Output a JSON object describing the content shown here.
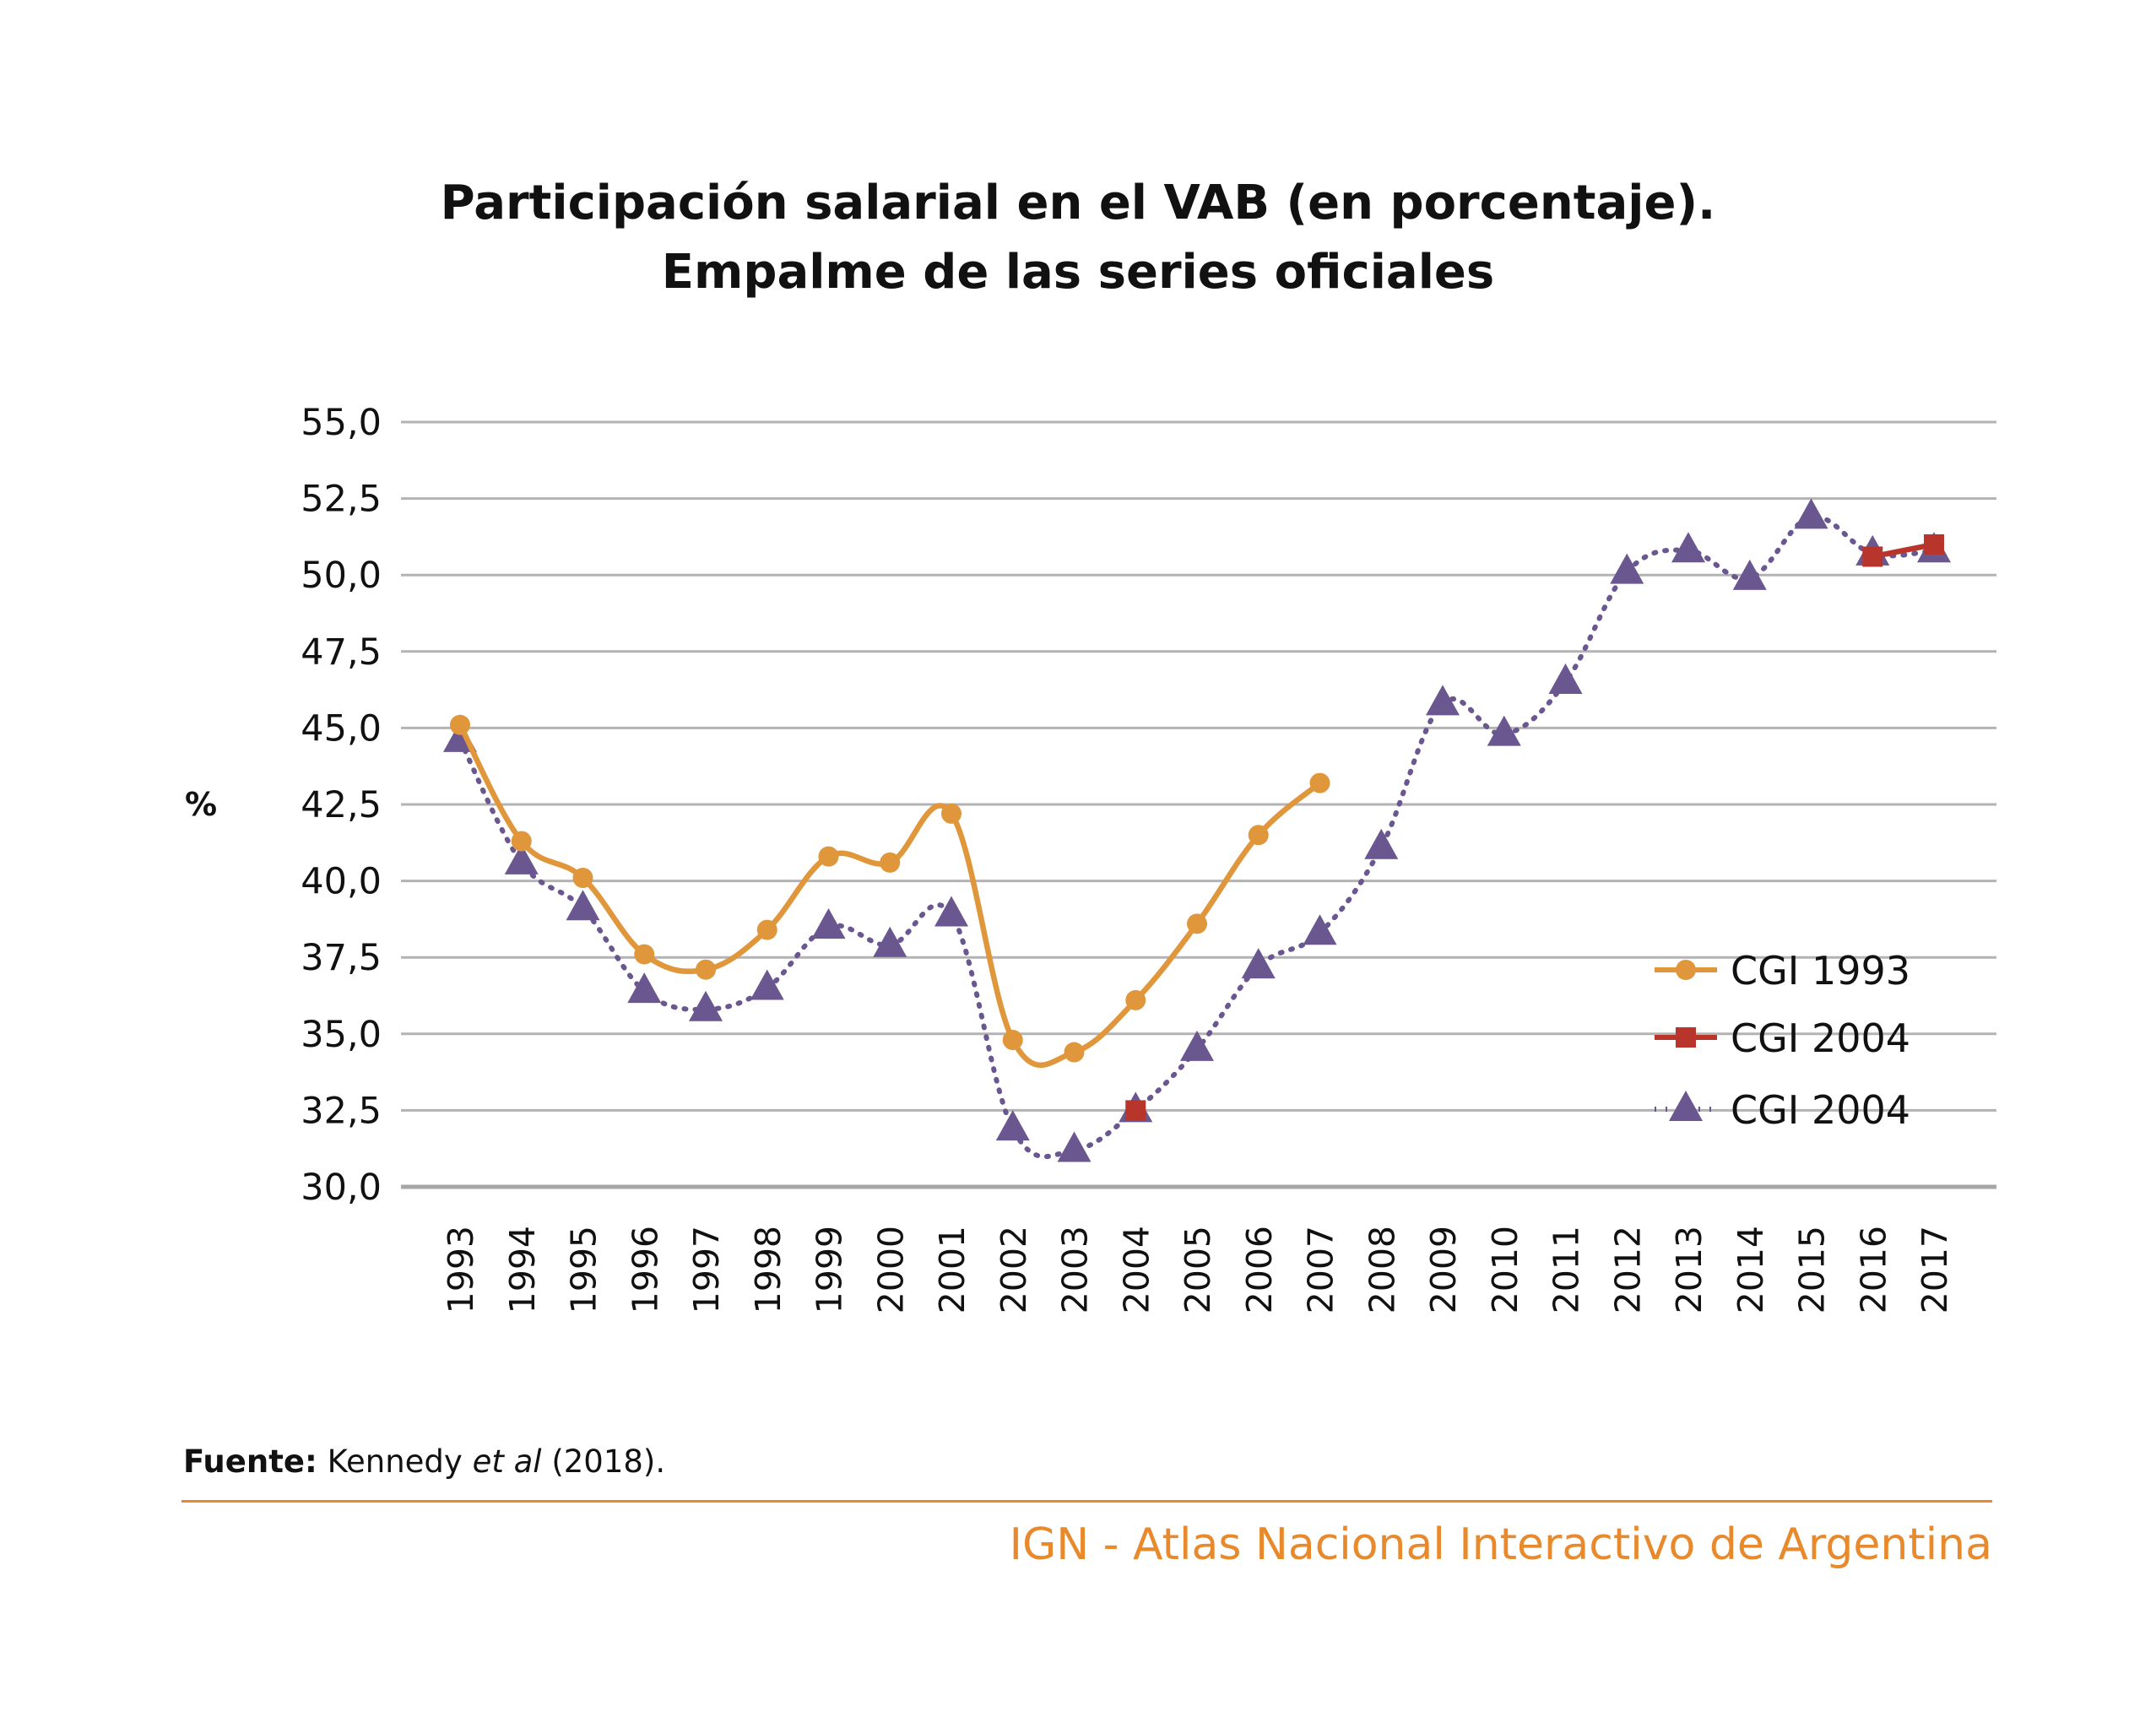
{
  "title_line1": "Participación salarial en el VAB (en porcentaje).",
  "title_line2": "Empalme de las series oficiales",
  "source_label": "Fuente:",
  "source_author": "Kennedy",
  "source_etal": "et al",
  "source_year": "(2018).",
  "footer": "IGN - Atlas Nacional Interactivo de Argentina",
  "colors": {
    "orange": "#E0963A",
    "red": "#B8352C",
    "purple": "#6B5790",
    "grid": "#B3B3B3",
    "axis": "#A6A6A6",
    "footer": "#E8892B"
  },
  "chart_data": {
    "type": "line",
    "ylabel": "%",
    "xlabel": "",
    "ylim": [
      30,
      55
    ],
    "yticks": [
      30,
      32.5,
      35,
      37.5,
      40,
      42.5,
      45,
      47.5,
      50,
      52.5,
      55
    ],
    "ytick_labels": [
      "30,0",
      "32,5",
      "35,0",
      "37,5",
      "40,0",
      "42,5",
      "45,0",
      "47,5",
      "50,0",
      "52,5",
      "55,0"
    ],
    "categories": [
      "1993",
      "1994",
      "1995",
      "1996",
      "1997",
      "1998",
      "1999",
      "2000",
      "2001",
      "2002",
      "2003",
      "2004",
      "2005",
      "2006",
      "2007",
      "2008",
      "2009",
      "2010",
      "2011",
      "2012",
      "2013",
      "2014",
      "2015",
      "2016",
      "2017"
    ],
    "grid": true,
    "legend_position": "right",
    "series": [
      {
        "name": "CGI 1993",
        "marker": "circle",
        "style": "solid",
        "color": "orange",
        "values": [
          45.1,
          41.3,
          40.1,
          37.6,
          37.1,
          38.4,
          40.8,
          40.6,
          42.2,
          34.8,
          34.4,
          36.1,
          38.6,
          41.5,
          43.2,
          null,
          null,
          null,
          null,
          null,
          null,
          null,
          null,
          null,
          null
        ]
      },
      {
        "name": "CGI 2004",
        "marker": "square",
        "style": "solid",
        "color": "red",
        "values": [
          null,
          null,
          null,
          null,
          null,
          null,
          null,
          null,
          null,
          null,
          null,
          32.5,
          null,
          null,
          null,
          null,
          null,
          null,
          null,
          null,
          null,
          null,
          null,
          50.6,
          51.0
        ]
      },
      {
        "name": "CGI 2004",
        "marker": "triangle",
        "style": "dotted",
        "color": "purple",
        "values": [
          44.6,
          40.6,
          39.1,
          36.4,
          35.8,
          36.5,
          38.5,
          37.9,
          38.9,
          31.9,
          31.2,
          32.5,
          34.5,
          37.2,
          38.3,
          41.1,
          45.8,
          44.8,
          46.5,
          50.1,
          50.8,
          49.9,
          51.9,
          50.7,
          50.8
        ]
      }
    ]
  }
}
